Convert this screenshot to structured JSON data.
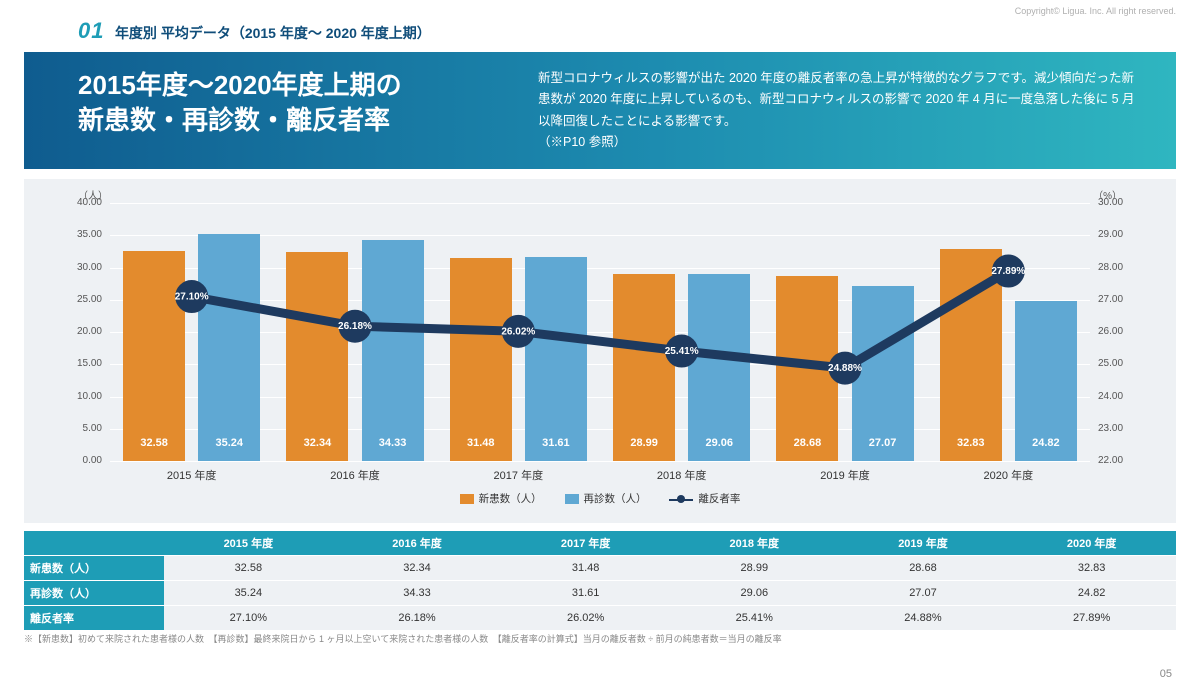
{
  "copyright": "Copyright© Ligua. Inc. All right reserved.",
  "section": {
    "num": "01",
    "title": "年度別 平均データ（2015 年度～ 2020 年度上期）"
  },
  "hero": {
    "title_l1": "2015年度～2020年度上期の",
    "title_l2": "新患数・再診数・離反者率",
    "desc": "新型コロナウィルスの影響が出た 2020 年度の離反者率の急上昇が特徴的なグラフです。減少傾向だった新患数が 2020 年度に上昇しているのも、新型コロナウィルスの影響で 2020 年 4 月に一度急落した後に 5 月以降回復したことによる影響です。\n（※P10 参照）"
  },
  "chart": {
    "type": "bar+line",
    "bar_color_1": "#e38b2d",
    "bar_color_2": "#5fa8d3",
    "line_color": "#1e3a5f",
    "background": "#eef1f4",
    "grid_color": "#ffffff",
    "left_axis": {
      "unit": "（人）",
      "min": 0,
      "max": 40,
      "step": 5
    },
    "right_axis": {
      "unit": "（%）",
      "min": 22,
      "max": 30,
      "step": 1
    },
    "categories": [
      "2015 年度",
      "2016 年度",
      "2017 年度",
      "2018 年度",
      "2019 年度",
      "2020 年度"
    ],
    "series_bar1": {
      "name": "新患数（人）",
      "values": [
        32.58,
        32.34,
        31.48,
        28.99,
        28.68,
        32.83
      ]
    },
    "series_bar2": {
      "name": "再診数（人）",
      "values": [
        35.24,
        34.33,
        31.61,
        29.06,
        27.07,
        24.82
      ]
    },
    "series_line": {
      "name": "離反者率",
      "values": [
        27.1,
        26.18,
        26.02,
        25.41,
        24.88,
        27.89
      ],
      "labels": [
        "27.10%",
        "26.18%",
        "26.02%",
        "25.41%",
        "24.88%",
        "27.89%"
      ]
    }
  },
  "table": {
    "columns": [
      "",
      "2015 年度",
      "2016 年度",
      "2017 年度",
      "2018 年度",
      "2019 年度",
      "2020 年度"
    ],
    "rows": [
      [
        "新患数（人）",
        "32.58",
        "32.34",
        "31.48",
        "28.99",
        "28.68",
        "32.83"
      ],
      [
        "再診数（人）",
        "35.24",
        "34.33",
        "31.61",
        "29.06",
        "27.07",
        "24.82"
      ],
      [
        "離反者率",
        "27.10%",
        "26.18%",
        "26.02%",
        "25.41%",
        "24.88%",
        "27.89%"
      ]
    ]
  },
  "footnote": "※【新患数】初めて来院された患者様の人数　【再診数】最終来院日から 1 ヶ月以上空いて来院された患者様の人数　【離反者率の計算式】当月の離反者数 ÷ 前月の純患者数＝当月の離反率",
  "pagenum": "05"
}
